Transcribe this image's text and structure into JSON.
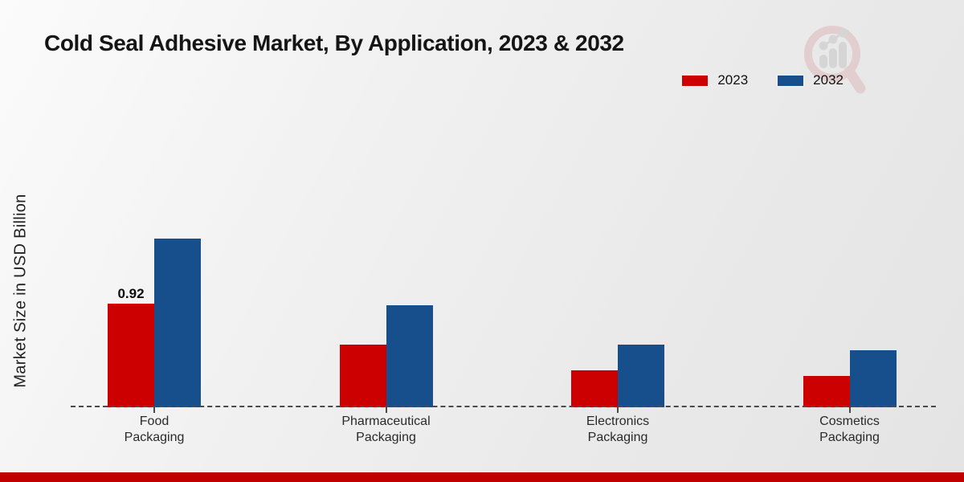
{
  "header": {
    "title": "Cold Seal Adhesive Market, By Application, 2023 & 2032"
  },
  "legend": {
    "items": [
      {
        "label": "2023",
        "color": "#cc0001"
      },
      {
        "label": "2032",
        "color": "#174e8c"
      }
    ]
  },
  "chart_data": {
    "type": "bar",
    "title": "Cold Seal Adhesive Market, By Application, 2023 & 2032",
    "xlabel": "",
    "ylabel": "Market Size in USD Billion",
    "categories": [
      "Food Packaging",
      "Pharmaceutical Packaging",
      "Electronics Packaging",
      "Cosmetics Packaging"
    ],
    "series": [
      {
        "name": "2023",
        "color": "#cc0001",
        "values": [
          0.92,
          0.56,
          0.33,
          0.28
        ]
      },
      {
        "name": "2032",
        "color": "#174e8c",
        "values": [
          1.5,
          0.91,
          0.56,
          0.51
        ]
      }
    ],
    "data_labels": [
      {
        "series": "2023",
        "category": "Food Packaging",
        "text": "0.92"
      }
    ],
    "ylim": [
      0,
      1.6
    ],
    "grid": false,
    "legend_position": "top-right",
    "baseline_style": "dashed"
  },
  "footer": {
    "accent_color": "#c00000"
  }
}
